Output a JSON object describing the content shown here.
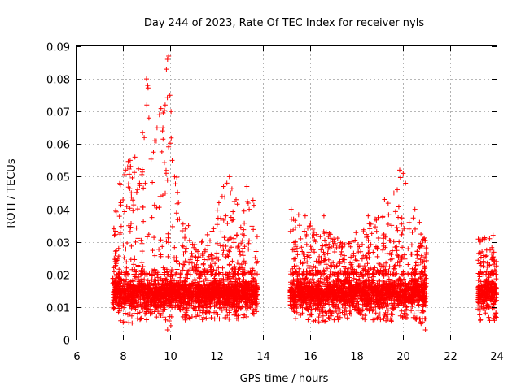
{
  "chart_data": {
    "type": "scatter",
    "title": "Day 244 of 2023, Rate Of TEC Index for receiver nyls",
    "xlabel": "GPS time / hours",
    "ylabel": "ROTI / TECUs",
    "xlim": [
      6,
      24
    ],
    "ylim": [
      0,
      0.09
    ],
    "grid": true,
    "legend": "none",
    "marker": "plus",
    "color": "#ff0000",
    "x_ticks": [
      6,
      8,
      10,
      12,
      14,
      16,
      18,
      20,
      22,
      24
    ],
    "x_tick_labels": [
      "6",
      "8",
      "10",
      "12",
      "14",
      "16",
      "18",
      "20",
      "22",
      "24"
    ],
    "y_ticks": [
      0,
      0.01,
      0.02,
      0.03,
      0.04,
      0.05,
      0.06,
      0.07,
      0.08,
      0.09
    ],
    "y_tick_labels": [
      "0",
      "0.01",
      "0.02",
      "0.03",
      "0.04",
      "0.05",
      "0.06",
      "0.07",
      "0.08",
      "0.09"
    ],
    "series": [
      {
        "name": "ROTI",
        "segments": [
          {
            "start": 7.55,
            "end": 13.75
          },
          {
            "start": 15.15,
            "end": 21.0
          },
          {
            "start": 23.2,
            "end": 24.0
          }
        ],
        "envelope_x": [
          7.55,
          8.0,
          8.5,
          9.0,
          9.5,
          9.9,
          10.3,
          10.8,
          11.3,
          11.8,
          12.3,
          12.6,
          13.0,
          13.5,
          13.75,
          15.15,
          15.6,
          16.0,
          16.5,
          17.0,
          17.5,
          18.0,
          18.5,
          19.0,
          19.5,
          19.9,
          20.3,
          20.6,
          21.0,
          23.2,
          23.6,
          24.0
        ],
        "envelope_ymax": [
          0.035,
          0.055,
          0.056,
          0.08,
          0.07,
          0.087,
          0.05,
          0.032,
          0.03,
          0.035,
          0.047,
          0.05,
          0.04,
          0.047,
          0.033,
          0.04,
          0.038,
          0.036,
          0.035,
          0.032,
          0.03,
          0.033,
          0.038,
          0.038,
          0.045,
          0.051,
          0.04,
          0.036,
          0.03,
          0.031,
          0.032,
          0.025
        ],
        "envelope_ymin": [
          0.007,
          0.005,
          0.005,
          0.006,
          0.006,
          0.003,
          0.006,
          0.006,
          0.006,
          0.006,
          0.006,
          0.006,
          0.006,
          0.007,
          0.007,
          0.007,
          0.006,
          0.006,
          0.005,
          0.006,
          0.006,
          0.006,
          0.006,
          0.006,
          0.005,
          0.005,
          0.006,
          0.005,
          0.003,
          0.006,
          0.005,
          0.006
        ],
        "typical_band": [
          0.009,
          0.02
        ],
        "spike_points": [
          {
            "x": 7.6,
            "y": 0.034
          },
          {
            "x": 7.9,
            "y": 0.042
          },
          {
            "x": 8.1,
            "y": 0.052
          },
          {
            "x": 8.3,
            "y": 0.055
          },
          {
            "x": 8.5,
            "y": 0.056
          },
          {
            "x": 8.7,
            "y": 0.048
          },
          {
            "x": 8.9,
            "y": 0.062
          },
          {
            "x": 9.0,
            "y": 0.08
          },
          {
            "x": 9.05,
            "y": 0.078
          },
          {
            "x": 9.1,
            "y": 0.068
          },
          {
            "x": 9.35,
            "y": 0.061
          },
          {
            "x": 9.45,
            "y": 0.065
          },
          {
            "x": 9.55,
            "y": 0.069
          },
          {
            "x": 9.7,
            "y": 0.065
          },
          {
            "x": 9.8,
            "y": 0.072
          },
          {
            "x": 9.85,
            "y": 0.083
          },
          {
            "x": 9.9,
            "y": 0.086
          },
          {
            "x": 9.95,
            "y": 0.087
          },
          {
            "x": 10.0,
            "y": 0.075
          },
          {
            "x": 10.05,
            "y": 0.07
          },
          {
            "x": 10.1,
            "y": 0.055
          },
          {
            "x": 10.2,
            "y": 0.05
          },
          {
            "x": 10.8,
            "y": 0.035
          },
          {
            "x": 12.1,
            "y": 0.042
          },
          {
            "x": 12.3,
            "y": 0.047
          },
          {
            "x": 12.55,
            "y": 0.05
          },
          {
            "x": 12.6,
            "y": 0.045
          },
          {
            "x": 13.3,
            "y": 0.047
          },
          {
            "x": 13.4,
            "y": 0.04
          },
          {
            "x": 15.2,
            "y": 0.04
          },
          {
            "x": 15.3,
            "y": 0.037
          },
          {
            "x": 15.8,
            "y": 0.038
          },
          {
            "x": 16.6,
            "y": 0.038
          },
          {
            "x": 17.8,
            "y": 0.03
          },
          {
            "x": 18.5,
            "y": 0.038
          },
          {
            "x": 18.8,
            "y": 0.037
          },
          {
            "x": 19.2,
            "y": 0.043
          },
          {
            "x": 19.6,
            "y": 0.045
          },
          {
            "x": 19.85,
            "y": 0.052
          },
          {
            "x": 20.0,
            "y": 0.051
          },
          {
            "x": 20.1,
            "y": 0.048
          },
          {
            "x": 20.5,
            "y": 0.04
          },
          {
            "x": 20.7,
            "y": 0.036
          },
          {
            "x": 23.3,
            "y": 0.03
          },
          {
            "x": 23.7,
            "y": 0.031
          },
          {
            "x": 23.85,
            "y": 0.032
          },
          {
            "x": 9.9,
            "y": 0.003
          },
          {
            "x": 20.95,
            "y": 0.003
          }
        ]
      }
    ]
  }
}
